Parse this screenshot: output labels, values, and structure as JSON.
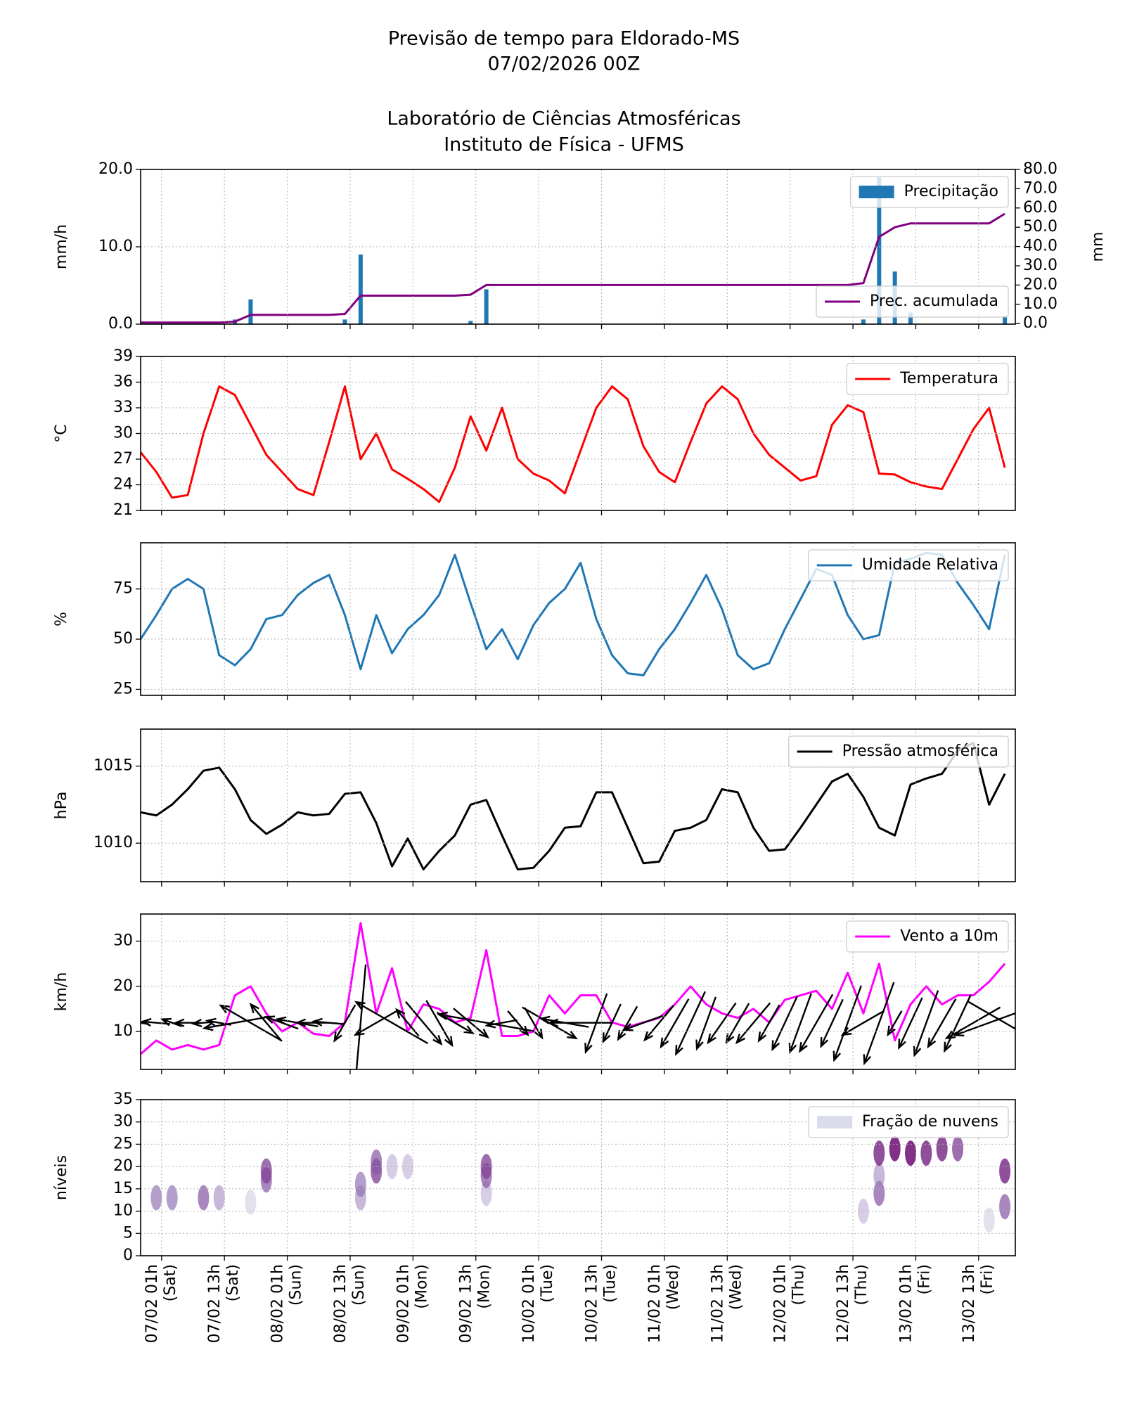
{
  "header": {
    "title": [
      "Previsão de tempo para Eldorado-MS",
      "07/02/2026 00Z"
    ],
    "subtitle": [
      "Laboratório de Ciências Atmosféricas",
      "Instituto de Física - UFMS"
    ]
  },
  "chart_data": [
    {
      "type": "bar",
      "ylabel": "mm/h",
      "y2label": "mm",
      "grid": true,
      "x": [
        -3,
        0,
        3,
        6,
        9,
        12,
        15,
        18,
        21,
        24,
        27,
        30,
        33,
        36,
        39,
        42,
        45,
        48,
        51,
        54,
        57,
        60,
        63,
        66,
        69,
        72,
        75,
        78,
        81,
        84,
        87,
        90,
        93,
        96,
        99,
        102,
        105,
        108,
        111,
        114,
        117,
        120,
        123,
        126,
        129,
        132,
        135,
        138,
        141,
        144,
        147,
        150,
        153,
        156,
        159,
        162
      ],
      "xlim": [
        -3,
        164
      ],
      "xticks": [
        1,
        13,
        25,
        37,
        49,
        61,
        73,
        85,
        97,
        109,
        121,
        133,
        145,
        157
      ],
      "ylim": [
        0,
        20
      ],
      "yticks": [
        {
          "value": 0,
          "label": "0.0"
        },
        {
          "value": 10,
          "label": "10.0"
        },
        {
          "value": 20,
          "label": "20.0"
        }
      ],
      "y2lim": [
        -0.3,
        80
      ],
      "y2ticks": [
        {
          "value": 0,
          "label": "0.0"
        },
        {
          "value": 10,
          "label": "10.0"
        },
        {
          "value": 20,
          "label": "20.0"
        },
        {
          "value": 30,
          "label": "30.0"
        },
        {
          "value": 40,
          "label": "40.0"
        },
        {
          "value": 50,
          "label": "50.0"
        },
        {
          "value": 60,
          "label": "60.0"
        },
        {
          "value": 70,
          "label": "70.0"
        },
        {
          "value": 80,
          "label": "80.0"
        }
      ],
      "series": [
        {
          "name": "Precipitação",
          "type": "bar",
          "color": "#1f77b4",
          "legend": "upper right",
          "values": [
            0,
            0,
            0,
            0,
            0,
            0,
            0.6,
            3.2,
            0,
            0,
            0,
            0,
            0,
            0.6,
            9,
            0,
            0,
            0,
            0,
            0,
            0,
            0.4,
            4.5,
            0,
            0,
            0,
            0,
            0,
            0,
            0,
            0,
            0,
            0,
            0,
            0,
            0,
            0,
            0,
            0,
            0,
            0,
            0,
            0,
            0,
            0,
            0,
            0.6,
            19,
            6.8,
            1.5,
            0,
            0,
            0,
            0,
            0,
            1.1
          ]
        },
        {
          "name": "Prec. acumulada",
          "type": "line",
          "axis": "y2",
          "color": "#800080",
          "legend": "lower right",
          "values": [
            0.5,
            0.5,
            0.5,
            0.5,
            0.5,
            0.5,
            1,
            4.5,
            4.5,
            4.5,
            4.5,
            4.5,
            4.5,
            5,
            14.5,
            14.5,
            14.5,
            14.5,
            14.5,
            14.5,
            14.5,
            15,
            20,
            20,
            20,
            20,
            20,
            20,
            20,
            20,
            20,
            20,
            20,
            20,
            20,
            20,
            20,
            20,
            20,
            20,
            20,
            20,
            20,
            20,
            20,
            20,
            21,
            45,
            50,
            52,
            52,
            52,
            52,
            52,
            52,
            57
          ]
        }
      ]
    },
    {
      "type": "line",
      "ylabel": "°C",
      "grid": true,
      "x": [
        -3,
        0,
        3,
        6,
        9,
        12,
        15,
        18,
        21,
        24,
        27,
        30,
        33,
        36,
        39,
        42,
        45,
        48,
        51,
        54,
        57,
        60,
        63,
        66,
        69,
        72,
        75,
        78,
        81,
        84,
        87,
        90,
        93,
        96,
        99,
        102,
        105,
        108,
        111,
        114,
        117,
        120,
        123,
        126,
        129,
        132,
        135,
        138,
        141,
        144,
        147,
        150,
        153,
        156,
        159,
        162
      ],
      "xlim": [
        -3,
        164
      ],
      "xticks": [
        1,
        13,
        25,
        37,
        49,
        61,
        73,
        85,
        97,
        109,
        121,
        133,
        145,
        157
      ],
      "ylim": [
        21,
        39
      ],
      "yticks": [
        21,
        24,
        27,
        30,
        33,
        36,
        39
      ],
      "series": [
        {
          "name": "Temperatura",
          "color": "#ff0000",
          "legend": "upper right",
          "values": [
            27.8,
            25.5,
            22.5,
            22.8,
            30,
            35.5,
            34.5,
            31,
            27.5,
            25.5,
            23.5,
            22.8,
            29,
            35.5,
            27,
            30,
            25.8,
            24.7,
            23.5,
            22,
            26,
            32,
            28,
            33,
            27,
            25.3,
            24.5,
            23,
            28,
            33,
            35.5,
            34,
            28.5,
            25.5,
            24.3,
            29,
            33.5,
            35.5,
            34,
            30,
            27.5,
            26,
            24.5,
            25,
            31,
            33.3,
            32.5,
            25.3,
            25.2,
            24.3,
            23.8,
            23.5,
            27,
            30.5,
            33,
            26
          ]
        }
      ]
    },
    {
      "type": "line",
      "ylabel": "%",
      "grid": true,
      "x": [
        -3,
        0,
        3,
        6,
        9,
        12,
        15,
        18,
        21,
        24,
        27,
        30,
        33,
        36,
        39,
        42,
        45,
        48,
        51,
        54,
        57,
        60,
        63,
        66,
        69,
        72,
        75,
        78,
        81,
        84,
        87,
        90,
        93,
        96,
        99,
        102,
        105,
        108,
        111,
        114,
        117,
        120,
        123,
        126,
        129,
        132,
        135,
        138,
        141,
        144,
        147,
        150,
        153,
        156,
        159,
        162
      ],
      "xlim": [
        -3,
        164
      ],
      "xticks": [
        1,
        13,
        25,
        37,
        49,
        61,
        73,
        85,
        97,
        109,
        121,
        133,
        145,
        157
      ],
      "ylim": [
        22,
        98
      ],
      "yticks": [
        25,
        50,
        75
      ],
      "series": [
        {
          "name": "Umidade Relativa",
          "color": "#1f77b4",
          "legend": "upper right",
          "values": [
            50,
            62,
            75,
            80,
            75,
            42,
            37,
            45,
            60,
            62,
            72,
            78,
            82,
            62,
            35,
            62,
            43,
            55,
            62,
            72,
            92,
            68,
            45,
            55,
            40,
            57,
            68,
            75,
            88,
            60,
            42,
            33,
            32,
            45,
            55,
            68,
            82,
            65,
            42,
            35,
            38,
            55,
            70,
            85,
            82,
            62,
            50,
            52,
            88,
            90,
            93,
            92,
            78,
            67,
            55,
            92
          ]
        }
      ]
    },
    {
      "type": "line",
      "ylabel": "hPa",
      "grid": true,
      "x": [
        -3,
        0,
        3,
        6,
        9,
        12,
        15,
        18,
        21,
        24,
        27,
        30,
        33,
        36,
        39,
        42,
        45,
        48,
        51,
        54,
        57,
        60,
        63,
        66,
        69,
        72,
        75,
        78,
        81,
        84,
        87,
        90,
        93,
        96,
        99,
        102,
        105,
        108,
        111,
        114,
        117,
        120,
        123,
        126,
        129,
        132,
        135,
        138,
        141,
        144,
        147,
        150,
        153,
        156,
        159,
        162
      ],
      "xlim": [
        -3,
        164
      ],
      "xticks": [
        1,
        13,
        25,
        37,
        49,
        61,
        73,
        85,
        97,
        109,
        121,
        133,
        145,
        157
      ],
      "ylim": [
        1007.5,
        1017.4
      ],
      "yticks": [
        1010,
        1015
      ],
      "series": [
        {
          "name": "Pressão atmosférica",
          "color": "#000000",
          "legend": "upper right",
          "values": [
            1012,
            1011.8,
            1012.5,
            1013.5,
            1014.7,
            1014.9,
            1013.5,
            1011.5,
            1010.6,
            1011.2,
            1012,
            1011.8,
            1011.9,
            1013.2,
            1013.3,
            1011.3,
            1008.5,
            1010.3,
            1008.3,
            1009.5,
            1010.5,
            1012.5,
            1012.8,
            1010.5,
            1008.3,
            1008.4,
            1009.5,
            1011,
            1011.1,
            1013.3,
            1013.3,
            1011,
            1008.7,
            1008.8,
            1010.8,
            1011,
            1011.5,
            1013.5,
            1013.3,
            1011,
            1009.5,
            1009.6,
            1011,
            1012.5,
            1014,
            1014.5,
            1013,
            1011,
            1010.5,
            1013.8,
            1014.2,
            1014.5,
            1016,
            1016.5,
            1012.5,
            1014.5
          ]
        }
      ]
    },
    {
      "type": "line",
      "ylabel": "km/h",
      "grid": true,
      "x": [
        -3,
        0,
        3,
        6,
        9,
        12,
        15,
        18,
        21,
        24,
        27,
        30,
        33,
        36,
        39,
        42,
        45,
        48,
        51,
        54,
        57,
        60,
        63,
        66,
        69,
        72,
        75,
        78,
        81,
        84,
        87,
        90,
        93,
        96,
        99,
        102,
        105,
        108,
        111,
        114,
        117,
        120,
        123,
        126,
        129,
        132,
        135,
        138,
        141,
        144,
        147,
        150,
        153,
        156,
        159,
        162
      ],
      "xlim": [
        -3,
        164
      ],
      "xticks": [
        1,
        13,
        25,
        37,
        49,
        61,
        73,
        85,
        97,
        109,
        121,
        133,
        145,
        157
      ],
      "ylim": [
        1.6,
        36
      ],
      "yticks": [
        10,
        20,
        30
      ],
      "series": [
        {
          "name": "Vento a 10m",
          "color": "#ff00ff",
          "legend": "upper right",
          "values": [
            5,
            8,
            6,
            7,
            6,
            7,
            18,
            20,
            14,
            10,
            12,
            9.5,
            9,
            12,
            34,
            14,
            24,
            10,
            16,
            15,
            12,
            13,
            28,
            9,
            9,
            10,
            18,
            14,
            18,
            18,
            12,
            11,
            12,
            13,
            16,
            20,
            16,
            14,
            13,
            15,
            12,
            17,
            18,
            19,
            15,
            23,
            14,
            25,
            8,
            16,
            20,
            16,
            18,
            18,
            21,
            25
          ]
        }
      ],
      "wind_direction": [
        100,
        95,
        110,
        90,
        85,
        100,
        80,
        120,
        140,
        110,
        100,
        90,
        95,
        30,
        5,
        60,
        120,
        140,
        320,
        330,
        300,
        310,
        100,
        80,
        320,
        330,
        300,
        100,
        90,
        20,
        25,
        30,
        70,
        40,
        30,
        25,
        20,
        35,
        30,
        40,
        30,
        25,
        20,
        30,
        25,
        20,
        60,
        20,
        30,
        25,
        20,
        30,
        25,
        60,
        70,
        300
      ]
    },
    {
      "type": "heatmap",
      "ylabel": "níveis",
      "grid": true,
      "name": "Fração de nuvens",
      "colormap": [
        "#edf8fb",
        "#8c6bb1",
        "#6e016b"
      ],
      "xlim": [
        -3,
        164
      ],
      "xticks": [
        {
          "value": 1,
          "label": "07/02 01h\n(Sat)"
        },
        {
          "value": 13,
          "label": "07/02 13h\n(Sat)"
        },
        {
          "value": 25,
          "label": "08/02 01h\n(Sun)"
        },
        {
          "value": 37,
          "label": "08/02 13h\n(Sun)"
        },
        {
          "value": 49,
          "label": "09/02 01h\n(Mon)"
        },
        {
          "value": 61,
          "label": "09/02 13h\n(Mon)"
        },
        {
          "value": 73,
          "label": "10/02 01h\n(Tue)"
        },
        {
          "value": 85,
          "label": "10/02 13h\n(Tue)"
        },
        {
          "value": 97,
          "label": "11/02 01h\n(Wed)"
        },
        {
          "value": 109,
          "label": "11/02 13h\n(Wed)"
        },
        {
          "value": 121,
          "label": "12/02 01h\n(Thu)"
        },
        {
          "value": 133,
          "label": "12/02 13h\n(Thu)"
        },
        {
          "value": 145,
          "label": "13/02 01h\n(Fri)"
        },
        {
          "value": 157,
          "label": "13/02 13h\n(Fri)"
        }
      ],
      "ylim": [
        0,
        35
      ],
      "yticks": [
        0,
        5,
        10,
        15,
        20,
        25,
        30,
        35
      ],
      "cells": {
        "x": [
          0,
          3,
          9,
          12,
          18,
          21,
          21,
          39,
          39,
          42,
          42,
          45,
          48,
          63,
          63,
          63,
          135,
          138,
          138,
          138,
          141,
          144,
          147,
          150,
          153,
          159,
          162,
          162
        ],
        "level": [
          13,
          13,
          13,
          13,
          12,
          17,
          19,
          13,
          16,
          19,
          21,
          20,
          20,
          14,
          18,
          20,
          10,
          14,
          18,
          23,
          24,
          23,
          23,
          24,
          24,
          8,
          11,
          19
        ],
        "fraction": [
          0.5,
          0.5,
          0.6,
          0.4,
          0.2,
          0.6,
          0.7,
          0.4,
          0.5,
          0.7,
          0.6,
          0.3,
          0.3,
          0.3,
          0.6,
          0.7,
          0.3,
          0.6,
          0.4,
          0.8,
          0.9,
          0.9,
          0.8,
          0.8,
          0.7,
          0.2,
          0.6,
          0.8
        ]
      }
    }
  ]
}
